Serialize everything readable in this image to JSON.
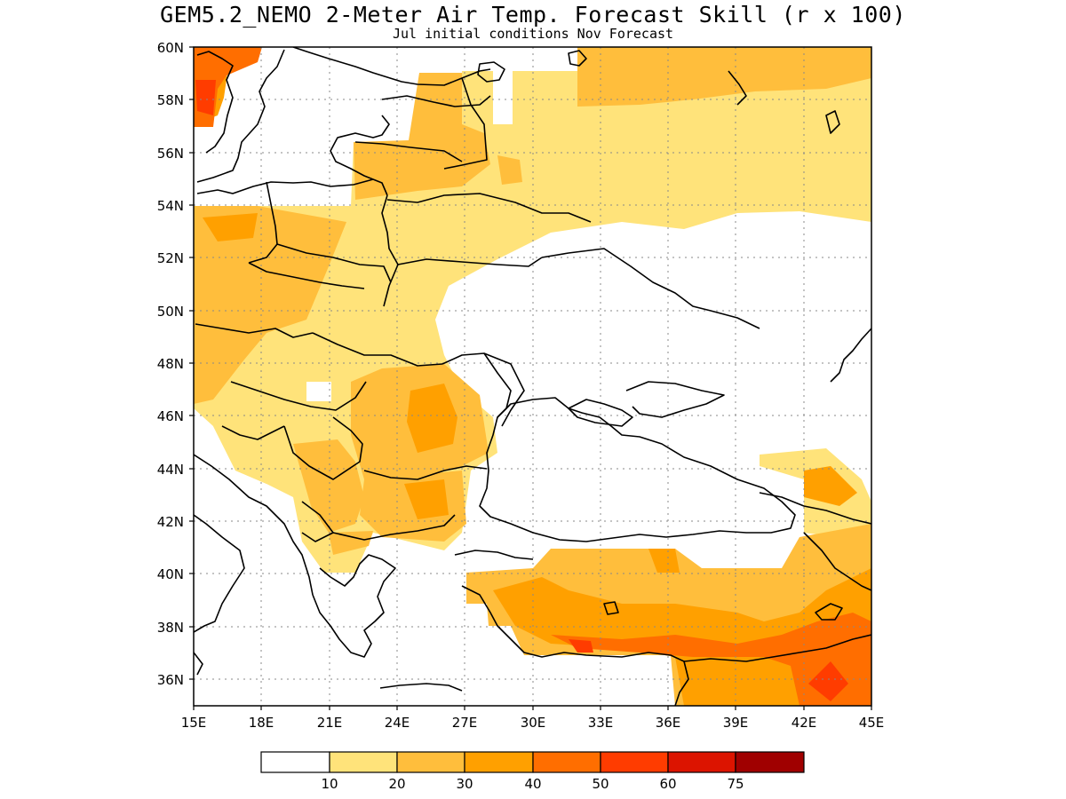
{
  "title": "GEM5.2_NEMO 2-Meter Air Temp. Forecast Skill (r x 100)",
  "subtitle": "Jul initial conditions   Nov Forecast",
  "map": {
    "lon_range": [
      15,
      45
    ],
    "lat_range": [
      35,
      60
    ],
    "lat_ticks": [
      "60N",
      "58N",
      "56N",
      "54N",
      "52N",
      "50N",
      "48N",
      "46N",
      "44N",
      "42N",
      "40N",
      "38N",
      "36N"
    ],
    "lon_ticks": [
      "15E",
      "18E",
      "21E",
      "24E",
      "27E",
      "30E",
      "33E",
      "36E",
      "39E",
      "42E",
      "45E"
    ],
    "gridlines": "dotted"
  },
  "colorbar": {
    "colors": [
      "#ffffff",
      "#ffe37a",
      "#ffbe3c",
      "#ffa000",
      "#ff6e00",
      "#ff3c00",
      "#dc1400",
      "#a00000"
    ],
    "labels": [
      "10",
      "20",
      "30",
      "40",
      "50",
      "60",
      "75"
    ]
  }
}
